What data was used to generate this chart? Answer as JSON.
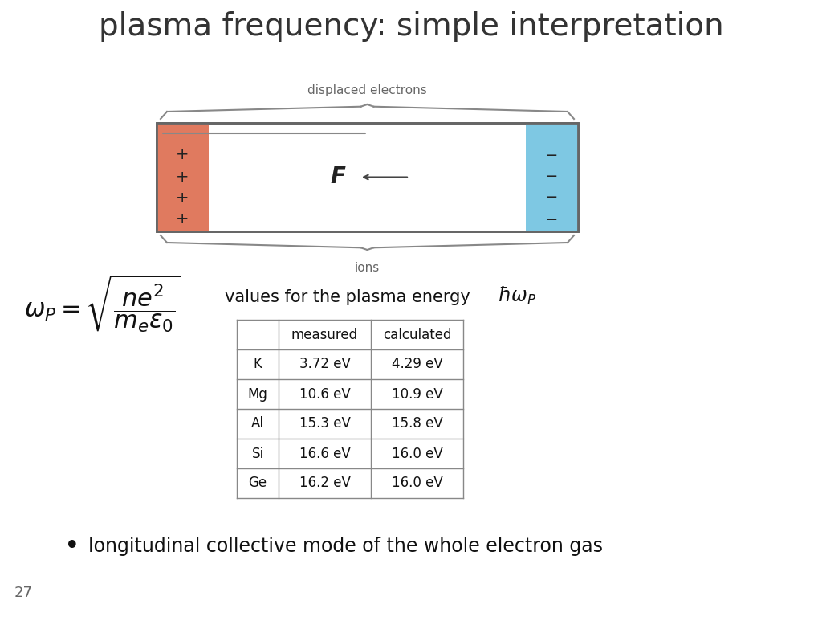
{
  "title": "plasma frequency: simple interpretation",
  "title_fontsize": 28,
  "background_color": "#ffffff",
  "plasma_energy_label": "values for the plasma energy",
  "bullet_text": "longitudinal collective mode of the whole electron gas",
  "page_number": "27",
  "table_headers": [
    "",
    "measured",
    "calculated"
  ],
  "table_rows": [
    [
      "K",
      "3.72 eV",
      "4.29 eV"
    ],
    [
      "Mg",
      "10.6 eV",
      "10.9 eV"
    ],
    [
      "Al",
      "15.3 eV",
      "15.8 eV"
    ],
    [
      "Si",
      "16.6 eV",
      "16.0 eV"
    ],
    [
      "Ge",
      "16.2 eV",
      "16.0 eV"
    ]
  ],
  "box_orange_color": "#E07A5F",
  "box_blue_color": "#7EC8E3",
  "box_white_color": "#ffffff",
  "box_border_color": "#666666",
  "displaced_electrons_label": "displaced electrons",
  "ions_label": "ions",
  "text_color": "#333333",
  "table_text_color": "#111111",
  "dim_color": "#666666"
}
